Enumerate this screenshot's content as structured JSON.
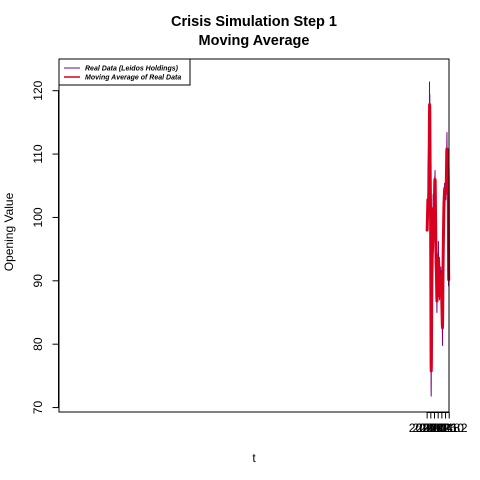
{
  "chart_data": {
    "type": "line",
    "title_lines": [
      "Crisis Simulation Step 1",
      "Moving Average"
    ],
    "xlabel": "t",
    "ylabel": "Opening Value",
    "xlim": [
      1999.993,
      2021.188
    ],
    "ylim": [
      69.3,
      125.0
    ],
    "x_ticks": [
      2020.0,
      2020.2,
      2020.4,
      2020.6,
      2020.8,
      2021.0,
      2021.2
    ],
    "x_tick_labels": [
      "2020.0",
      "2020.2",
      "2020.4",
      "2020.6",
      "2020.8",
      "2021.0",
      "2021.2"
    ],
    "y_ticks": [
      70,
      80,
      90,
      100,
      110,
      120
    ],
    "y_tick_labels": [
      "70",
      "80",
      "90",
      "100",
      "110",
      "120"
    ],
    "grid": false,
    "legend_position": "top-left",
    "series": [
      {
        "name": "Real Data (Leidos Holdings)",
        "color": "#800080",
        "width": 1,
        "points": [
          [
            2020.0,
            98.2
          ],
          [
            2020.008,
            98.6
          ],
          [
            2020.016,
            99.6
          ],
          [
            2020.024,
            100.1
          ],
          [
            2020.032,
            100.9
          ],
          [
            2020.04,
            102.4
          ],
          [
            2020.048,
            103.1
          ],
          [
            2020.056,
            102.0
          ],
          [
            2020.064,
            101.6
          ],
          [
            2020.072,
            102.8
          ],
          [
            2020.08,
            102.2
          ],
          [
            2020.088,
            104.2
          ],
          [
            2020.096,
            107.1
          ],
          [
            2020.104,
            110.8
          ],
          [
            2020.112,
            109.4
          ],
          [
            2020.12,
            112.6
          ],
          [
            2020.128,
            121.4
          ],
          [
            2020.136,
            114.2
          ],
          [
            2020.144,
            119.4
          ],
          [
            2020.152,
            112.6
          ],
          [
            2020.16,
            115.0
          ],
          [
            2020.168,
            110.2
          ],
          [
            2020.176,
            104.8
          ],
          [
            2020.184,
            101.1
          ],
          [
            2020.192,
            96.0
          ],
          [
            2020.2,
            86.8
          ],
          [
            2020.208,
            78.3
          ],
          [
            2020.216,
            72.8
          ],
          [
            2020.22,
            71.8
          ],
          [
            2020.228,
            78.1
          ],
          [
            2020.236,
            77.2
          ],
          [
            2020.244,
            82.8
          ],
          [
            2020.252,
            87.1
          ],
          [
            2020.26,
            90.6
          ],
          [
            2020.268,
            90.1
          ],
          [
            2020.276,
            93.1
          ],
          [
            2020.284,
            96.2
          ],
          [
            2020.292,
            93.8
          ],
          [
            2020.3,
            97.2
          ],
          [
            2020.308,
            96.0
          ],
          [
            2020.316,
            99.2
          ],
          [
            2020.324,
            103.6
          ],
          [
            2020.332,
            99.8
          ],
          [
            2020.34,
            101.2
          ],
          [
            2020.348,
            97.0
          ],
          [
            2020.356,
            100.6
          ],
          [
            2020.364,
            97.2
          ],
          [
            2020.372,
            96.6
          ],
          [
            2020.38,
            100.4
          ],
          [
            2020.388,
            102.1
          ],
          [
            2020.396,
            104.6
          ],
          [
            2020.404,
            103.0
          ],
          [
            2020.412,
            106.4
          ],
          [
            2020.42,
            105.4
          ],
          [
            2020.428,
            107.4
          ],
          [
            2020.436,
            105.6
          ],
          [
            2020.444,
            103.8
          ],
          [
            2020.452,
            100.5
          ],
          [
            2020.46,
            99.4
          ],
          [
            2020.468,
            97.6
          ],
          [
            2020.476,
            94.2
          ],
          [
            2020.484,
            90.2
          ],
          [
            2020.492,
            93.8
          ],
          [
            2020.5,
            90.2
          ],
          [
            2020.508,
            92.3
          ],
          [
            2020.516,
            88.6
          ],
          [
            2020.524,
            86.6
          ],
          [
            2020.532,
            85.0
          ],
          [
            2020.54,
            88.0
          ],
          [
            2020.548,
            87.2
          ],
          [
            2020.556,
            89.8
          ],
          [
            2020.564,
            91.6
          ],
          [
            2020.572,
            90.2
          ],
          [
            2020.58,
            93.2
          ],
          [
            2020.588,
            92.4
          ],
          [
            2020.596,
            94.3
          ],
          [
            2020.604,
            92.1
          ],
          [
            2020.612,
            96.2
          ],
          [
            2020.62,
            93.0
          ],
          [
            2020.628,
            91.6
          ],
          [
            2020.636,
            89.2
          ],
          [
            2020.644,
            91.8
          ],
          [
            2020.652,
            92.2
          ],
          [
            2020.66,
            90.4
          ],
          [
            2020.668,
            88.2
          ],
          [
            2020.676,
            87.0
          ],
          [
            2020.684,
            88.8
          ],
          [
            2020.692,
            87.4
          ],
          [
            2020.7,
            89.4
          ],
          [
            2020.708,
            88.6
          ],
          [
            2020.716,
            89.8
          ],
          [
            2020.724,
            91.6
          ],
          [
            2020.732,
            89.2
          ],
          [
            2020.74,
            92.2
          ],
          [
            2020.748,
            90.2
          ],
          [
            2020.756,
            91.6
          ],
          [
            2020.764,
            88.6
          ],
          [
            2020.772,
            89.2
          ],
          [
            2020.78,
            87.6
          ],
          [
            2020.788,
            88.4
          ],
          [
            2020.796,
            86.2
          ],
          [
            2020.804,
            85.4
          ],
          [
            2020.812,
            83.6
          ],
          [
            2020.82,
            83.0
          ],
          [
            2020.828,
            81.6
          ],
          [
            2020.836,
            79.8
          ],
          [
            2020.844,
            84.6
          ],
          [
            2020.852,
            88.6
          ],
          [
            2020.86,
            91.6
          ],
          [
            2020.868,
            93.4
          ],
          [
            2020.876,
            95.6
          ],
          [
            2020.884,
            97.6
          ],
          [
            2020.892,
            98.2
          ],
          [
            2020.9,
            100.4
          ],
          [
            2020.908,
            101.6
          ],
          [
            2020.916,
            103.4
          ],
          [
            2020.924,
            102.6
          ],
          [
            2020.932,
            104.2
          ],
          [
            2020.94,
            103.8
          ],
          [
            2020.948,
            105.4
          ],
          [
            2020.956,
            104.6
          ],
          [
            2020.964,
            105.2
          ],
          [
            2020.972,
            104.4
          ],
          [
            2020.98,
            104.8
          ],
          [
            2020.988,
            103.4
          ],
          [
            2020.996,
            104.8
          ],
          [
            2021.004,
            103.6
          ],
          [
            2021.012,
            105.4
          ],
          [
            2021.02,
            102.8
          ],
          [
            2021.028,
            104.6
          ],
          [
            2021.036,
            103.8
          ],
          [
            2021.044,
            106.4
          ],
          [
            2021.052,
            107.8
          ],
          [
            2021.06,
            110.4
          ],
          [
            2021.068,
            111.6
          ],
          [
            2021.076,
            113.4
          ],
          [
            2021.084,
            109.8
          ],
          [
            2021.092,
            109.2
          ],
          [
            2021.1,
            106.8
          ],
          [
            2021.108,
            106.2
          ],
          [
            2021.116,
            107.8
          ],
          [
            2021.124,
            109.4
          ],
          [
            2021.132,
            107.6
          ],
          [
            2021.14,
            106.2
          ],
          [
            2021.148,
            102.8
          ],
          [
            2021.156,
            97.4
          ],
          [
            2021.16,
            91.6
          ],
          [
            2021.164,
            89.2
          ],
          [
            2021.17,
            90.8
          ]
        ]
      },
      {
        "name": "Moving Average of Real Data",
        "color": "#d7001e",
        "width": 3,
        "points": [
          [
            2020.0,
            98.0
          ],
          [
            2020.01,
            99.0
          ],
          [
            2020.02,
            100.3
          ],
          [
            2020.03,
            101.5
          ],
          [
            2020.04,
            102.8
          ],
          [
            2020.05,
            102.6
          ],
          [
            2020.06,
            102.0
          ],
          [
            2020.07,
            101.8
          ],
          [
            2020.08,
            102.4
          ],
          [
            2020.09,
            104.4
          ],
          [
            2020.1,
            108.2
          ],
          [
            2020.11,
            110.2
          ],
          [
            2020.118,
            112.2
          ],
          [
            2020.126,
            115.8
          ],
          [
            2020.134,
            117.8
          ],
          [
            2020.142,
            117.4
          ],
          [
            2020.15,
            113.8
          ],
          [
            2020.16,
            109.0
          ],
          [
            2020.17,
            105.2
          ],
          [
            2020.18,
            102.4
          ],
          [
            2020.19,
            99.2
          ],
          [
            2020.2,
            91.0
          ],
          [
            2020.208,
            83.2
          ],
          [
            2020.216,
            77.0
          ],
          [
            2020.222,
            75.8
          ],
          [
            2020.23,
            76.6
          ],
          [
            2020.238,
            80.8
          ],
          [
            2020.246,
            86.8
          ],
          [
            2020.256,
            89.4
          ],
          [
            2020.266,
            91.6
          ],
          [
            2020.276,
            94.0
          ],
          [
            2020.286,
            94.6
          ],
          [
            2020.296,
            95.4
          ],
          [
            2020.306,
            96.4
          ],
          [
            2020.316,
            99.0
          ],
          [
            2020.326,
            101.4
          ],
          [
            2020.336,
            100.6
          ],
          [
            2020.346,
            99.2
          ],
          [
            2020.356,
            98.4
          ],
          [
            2020.366,
            97.8
          ],
          [
            2020.376,
            98.2
          ],
          [
            2020.386,
            99.8
          ],
          [
            2020.396,
            102.6
          ],
          [
            2020.406,
            104.2
          ],
          [
            2020.416,
            105.6
          ],
          [
            2020.426,
            106.0
          ],
          [
            2020.436,
            105.8
          ],
          [
            2020.446,
            103.2
          ],
          [
            2020.456,
            100.2
          ],
          [
            2020.466,
            97.8
          ],
          [
            2020.476,
            95.4
          ],
          [
            2020.486,
            93.0
          ],
          [
            2020.496,
            92.0
          ],
          [
            2020.506,
            91.2
          ],
          [
            2020.516,
            89.2
          ],
          [
            2020.526,
            87.2
          ],
          [
            2020.536,
            86.8
          ],
          [
            2020.546,
            87.4
          ],
          [
            2020.556,
            88.8
          ],
          [
            2020.566,
            90.2
          ],
          [
            2020.576,
            91.6
          ],
          [
            2020.586,
            93.0
          ],
          [
            2020.596,
            93.4
          ],
          [
            2020.606,
            93.2
          ],
          [
            2020.616,
            93.6
          ],
          [
            2020.626,
            92.8
          ],
          [
            2020.636,
            91.4
          ],
          [
            2020.646,
            91.0
          ],
          [
            2020.656,
            90.6
          ],
          [
            2020.666,
            89.4
          ],
          [
            2020.676,
            88.0
          ],
          [
            2020.686,
            87.6
          ],
          [
            2020.696,
            88.4
          ],
          [
            2020.706,
            89.0
          ],
          [
            2020.716,
            90.0
          ],
          [
            2020.726,
            90.6
          ],
          [
            2020.736,
            90.8
          ],
          [
            2020.746,
            90.6
          ],
          [
            2020.756,
            90.0
          ],
          [
            2020.766,
            89.2
          ],
          [
            2020.776,
            88.6
          ],
          [
            2020.786,
            87.8
          ],
          [
            2020.796,
            86.8
          ],
          [
            2020.806,
            85.6
          ],
          [
            2020.816,
            84.2
          ],
          [
            2020.826,
            83.0
          ],
          [
            2020.836,
            82.6
          ],
          [
            2020.846,
            85.4
          ],
          [
            2020.856,
            89.4
          ],
          [
            2020.866,
            92.4
          ],
          [
            2020.876,
            95.0
          ],
          [
            2020.886,
            97.0
          ],
          [
            2020.896,
            99.0
          ],
          [
            2020.906,
            100.8
          ],
          [
            2020.916,
            102.0
          ],
          [
            2020.926,
            103.0
          ],
          [
            2020.936,
            103.6
          ],
          [
            2020.946,
            104.2
          ],
          [
            2020.956,
            104.6
          ],
          [
            2020.966,
            104.6
          ],
          [
            2020.976,
            104.4
          ],
          [
            2020.986,
            104.2
          ],
          [
            2020.996,
            104.2
          ],
          [
            2021.006,
            104.2
          ],
          [
            2021.016,
            104.0
          ],
          [
            2021.026,
            103.8
          ],
          [
            2021.036,
            104.6
          ],
          [
            2021.046,
            106.2
          ],
          [
            2021.056,
            108.2
          ],
          [
            2021.066,
            110.4
          ],
          [
            2021.076,
            110.8
          ],
          [
            2021.086,
            109.8
          ],
          [
            2021.096,
            107.6
          ],
          [
            2021.106,
            106.4
          ],
          [
            2021.116,
            107.0
          ],
          [
            2021.126,
            108.6
          ],
          [
            2021.136,
            108.2
          ],
          [
            2021.146,
            106.2
          ],
          [
            2021.154,
            101.6
          ],
          [
            2021.16,
            96.2
          ],
          [
            2021.166,
            91.6
          ],
          [
            2021.172,
            90.2
          ]
        ]
      }
    ]
  }
}
